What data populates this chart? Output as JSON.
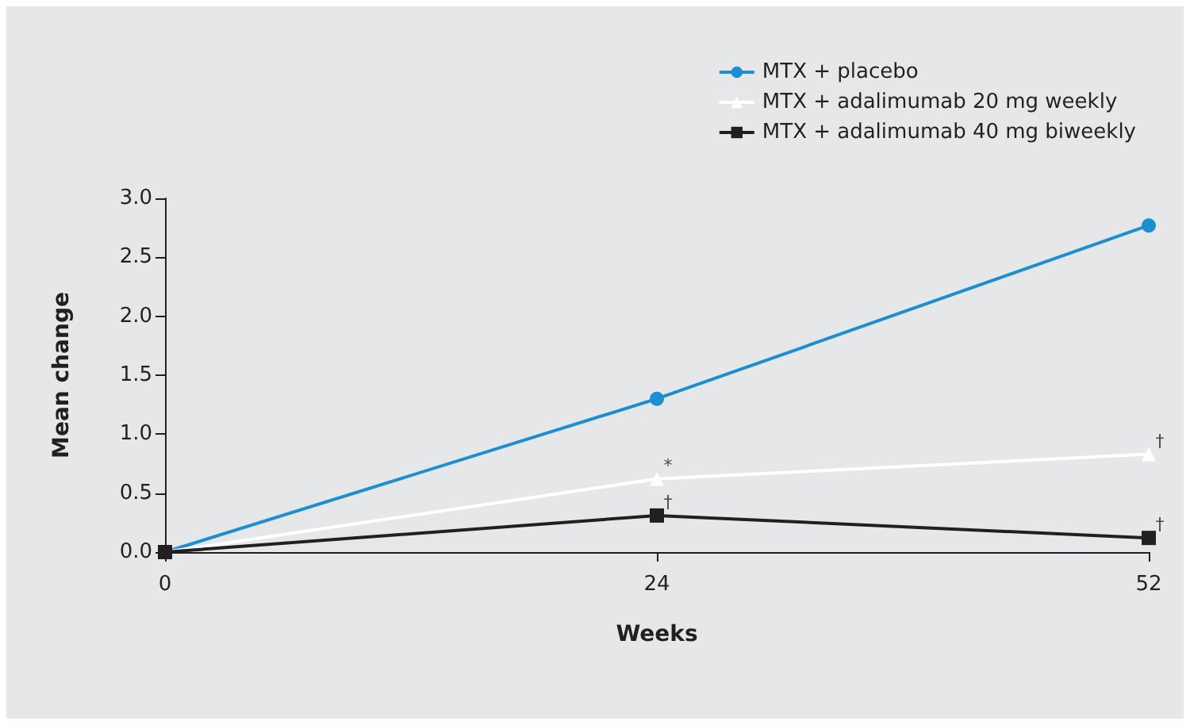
{
  "chart_data": {
    "type": "line",
    "xlabel": "Weeks",
    "ylabel": "Mean change",
    "categories": [
      "0",
      "24",
      "52"
    ],
    "series": [
      {
        "name": "MTX + placebo",
        "color": "#1b8fd2",
        "marker": "circle",
        "values": [
          0,
          1.3,
          2.77
        ]
      },
      {
        "name": "MTX + adalimumab 20 mg weekly",
        "color": "#ffffff",
        "marker": "triangle",
        "values": [
          0,
          0.62,
          0.83
        ]
      },
      {
        "name": "MTX + adalimumab 40 mg biweekly",
        "color": "#231f20",
        "marker": "square",
        "values": [
          0,
          0.31,
          0.12
        ]
      }
    ],
    "ylim": [
      0,
      3
    ],
    "yticks": [
      {
        "value": 0,
        "label": "0.0"
      },
      0.5,
      {
        "value": 1,
        "label": "1.0"
      },
      1.5,
      {
        "value": 2,
        "label": "2.0"
      },
      2.5,
      {
        "value": 3,
        "label": "3.0"
      }
    ],
    "annotations": [
      {
        "text": "*",
        "x": "24",
        "y": 0.62
      },
      {
        "text": "†",
        "x": "52",
        "y": 0.83
      },
      {
        "text": "†",
        "x": "24",
        "y": 0.31
      },
      {
        "text": "†",
        "x": "52",
        "y": 0.12
      }
    ],
    "grid": false,
    "legend": "top right"
  }
}
